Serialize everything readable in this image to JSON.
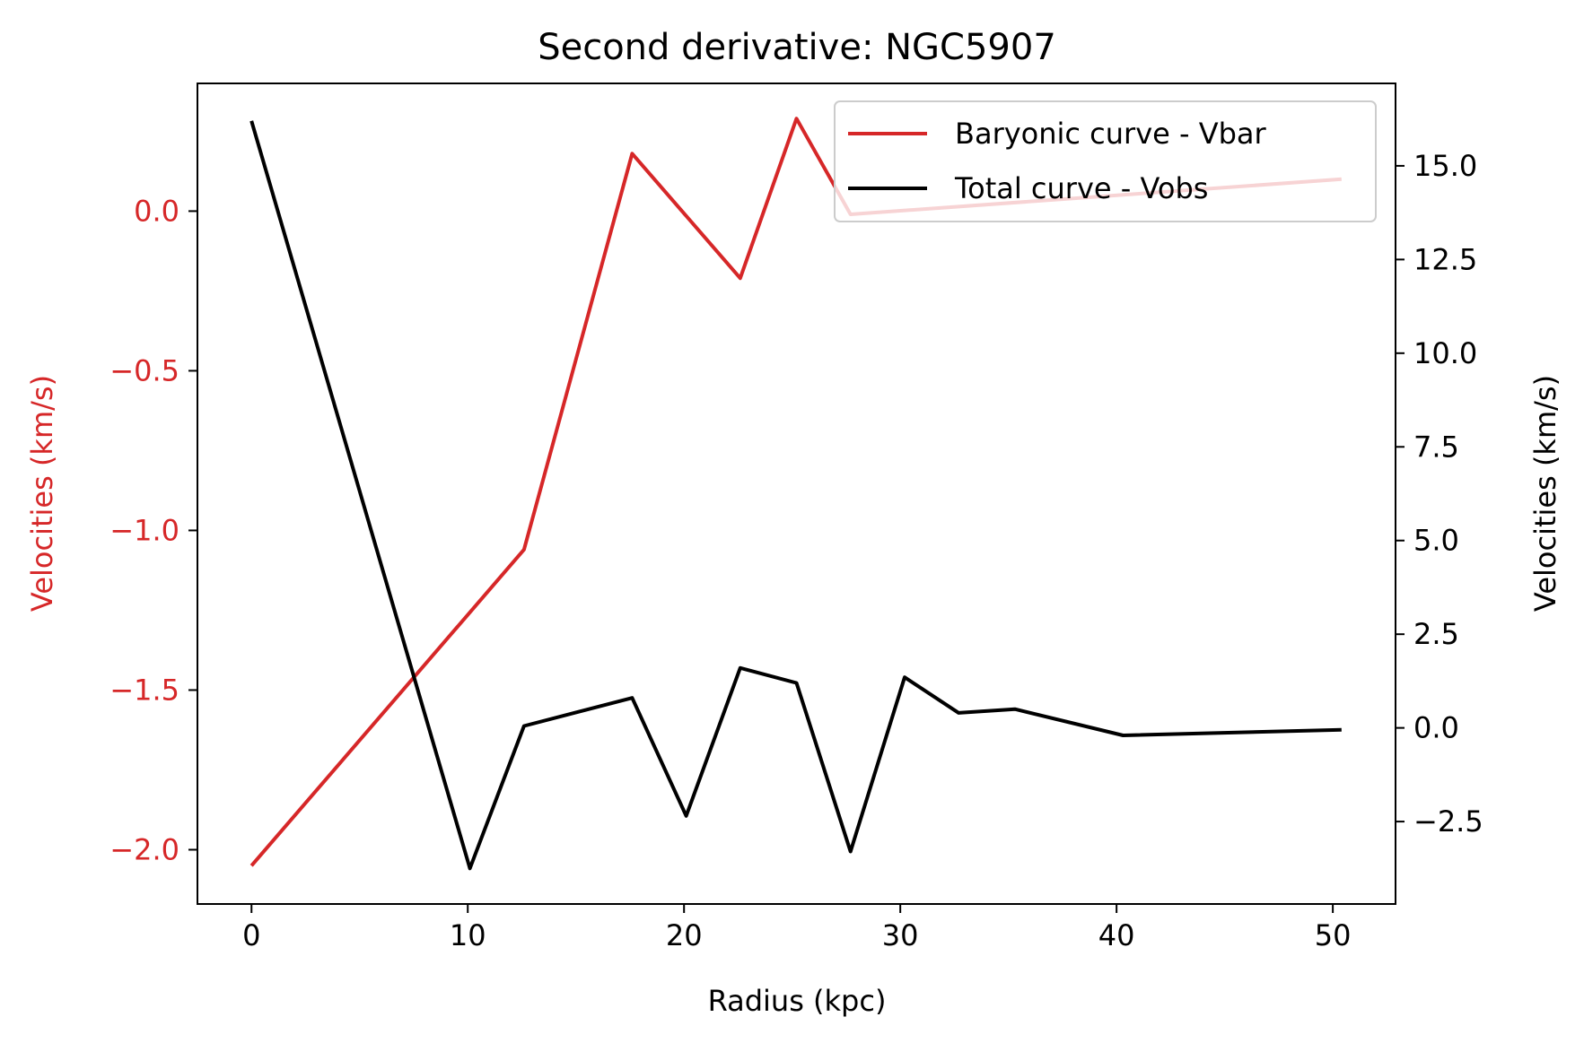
{
  "chart_data": {
    "type": "line",
    "title": "Second derivative: NGC5907",
    "xlabel": "Radius (kpc)",
    "ylabel_left": "Velocities (km/s)",
    "ylabel_right": "Velocities (km/s)",
    "xlim": [
      -2.5,
      52.9
    ],
    "ylim_left": [
      -2.17,
      0.4
    ],
    "ylim_right": [
      -4.7,
      17.2
    ],
    "x_ticks": [
      0,
      10,
      20,
      30,
      40,
      50
    ],
    "y_ticks_left": [
      -2.0,
      -1.5,
      -1.0,
      -0.5,
      0.0
    ],
    "y_ticks_right": [
      -2.5,
      0.0,
      2.5,
      5.0,
      7.5,
      10.0,
      12.5,
      15.0
    ],
    "y_tick_labels_left": [
      "−2.0",
      "−1.5",
      "−1.0",
      "−0.5",
      "0.0"
    ],
    "y_tick_labels_right": [
      "−2.5",
      "0.0",
      "2.5",
      "5.0",
      "7.5",
      "10.0",
      "12.5",
      "15.0"
    ],
    "grid": false,
    "legend_position": "top-right",
    "colors": {
      "vbar": "#d62728",
      "vobs": "#000000",
      "left_axis": "#d62728",
      "right_axis": "#000000"
    },
    "series": [
      {
        "name": "Baryonic curve - Vbar",
        "axis": "left",
        "x": [
          0,
          12.6,
          17.6,
          22.6,
          25.2,
          27.7,
          50.4
        ],
        "values": [
          -2.05,
          -1.06,
          0.18,
          -0.21,
          0.29,
          -0.01,
          0.1
        ]
      },
      {
        "name": "Total curve - Vobs",
        "axis": "right",
        "x": [
          0,
          10.1,
          12.6,
          17.6,
          20.1,
          22.6,
          25.2,
          27.7,
          30.2,
          32.7,
          35.3,
          40.3,
          50.4
        ],
        "values": [
          16.2,
          -3.75,
          0.05,
          0.8,
          -2.35,
          1.6,
          1.2,
          -3.3,
          1.35,
          0.4,
          0.5,
          -0.2,
          -0.05
        ]
      }
    ]
  }
}
